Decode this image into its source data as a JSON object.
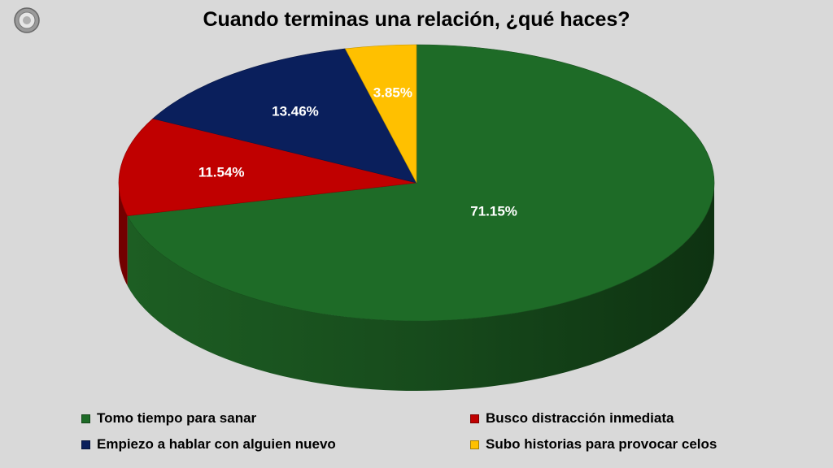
{
  "title": "Cuando terminas una relación, ¿qué haces?",
  "logo_icon": "circular-logo-icon",
  "chart_data": {
    "type": "pie",
    "title": "Cuando terminas una relación, ¿qué haces?",
    "style": "3d",
    "legend_position": "bottom",
    "slices": [
      {
        "name": "Tomo tiempo para sanar",
        "value": 71.15,
        "label": "71.15%",
        "color": "#1e6b27"
      },
      {
        "name": "Busco distracción inmediata",
        "value": 11.54,
        "label": "11.54%",
        "color": "#c00000"
      },
      {
        "name": "Empiezo a hablar con alguien nuevo",
        "value": 13.46,
        "label": "13.46%",
        "color": "#0a1f5c"
      },
      {
        "name": "Subo historias para provocar celos",
        "value": 3.85,
        "label": "3.85%",
        "color": "#ffc000"
      }
    ]
  }
}
